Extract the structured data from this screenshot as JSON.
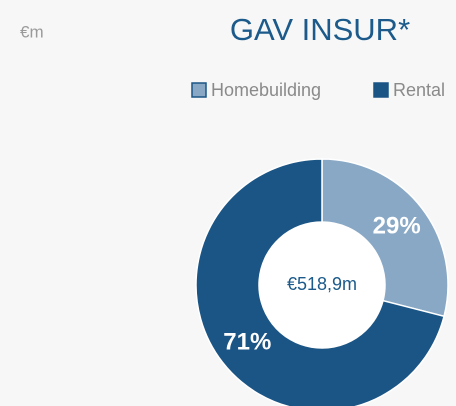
{
  "chart_data": {
    "type": "donut",
    "title": "GAV INSUR*",
    "unit_label": "€m",
    "center_label": "€518,9m",
    "categories": [
      "Homebuilding",
      "Rental"
    ],
    "values": [
      29,
      71
    ],
    "value_labels": [
      "29%",
      "71%"
    ],
    "colors": [
      "#88a8c5",
      "#1b5585"
    ],
    "legend": "top-right"
  }
}
